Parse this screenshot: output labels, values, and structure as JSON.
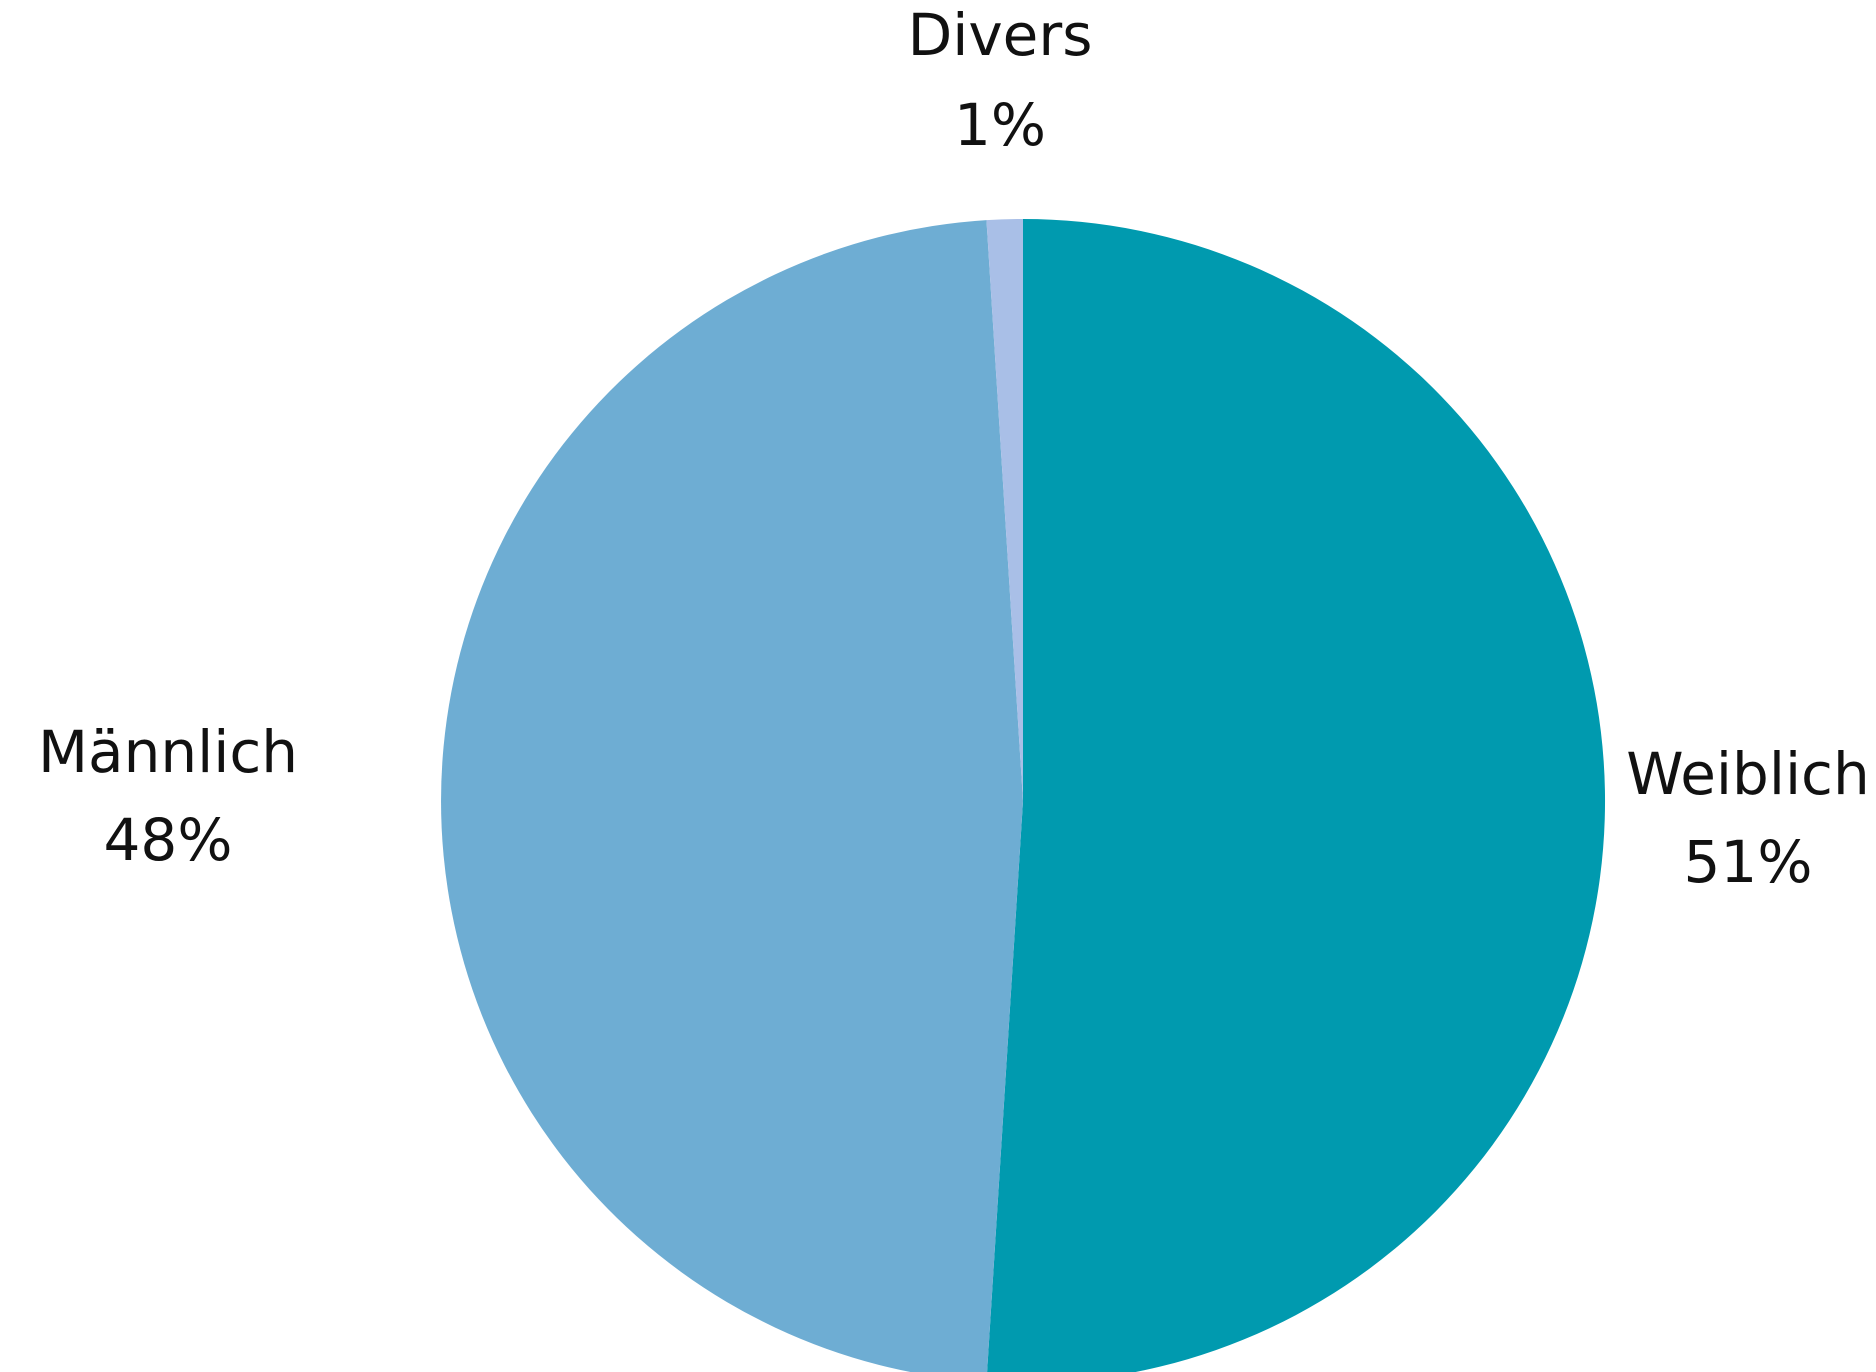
{
  "chart_data": {
    "type": "pie",
    "title": "",
    "categories": [
      "Weiblich",
      "Männlich",
      "Divers"
    ],
    "values": [
      51,
      48,
      1
    ],
    "value_labels": [
      "51%",
      "48%",
      "1%"
    ],
    "colors": [
      "#009aaf",
      "#6eadd3",
      "#a9bfe7"
    ],
    "start": "12 o'clock",
    "direction": "clockwise",
    "legend": "none",
    "label_placement": "outside"
  }
}
